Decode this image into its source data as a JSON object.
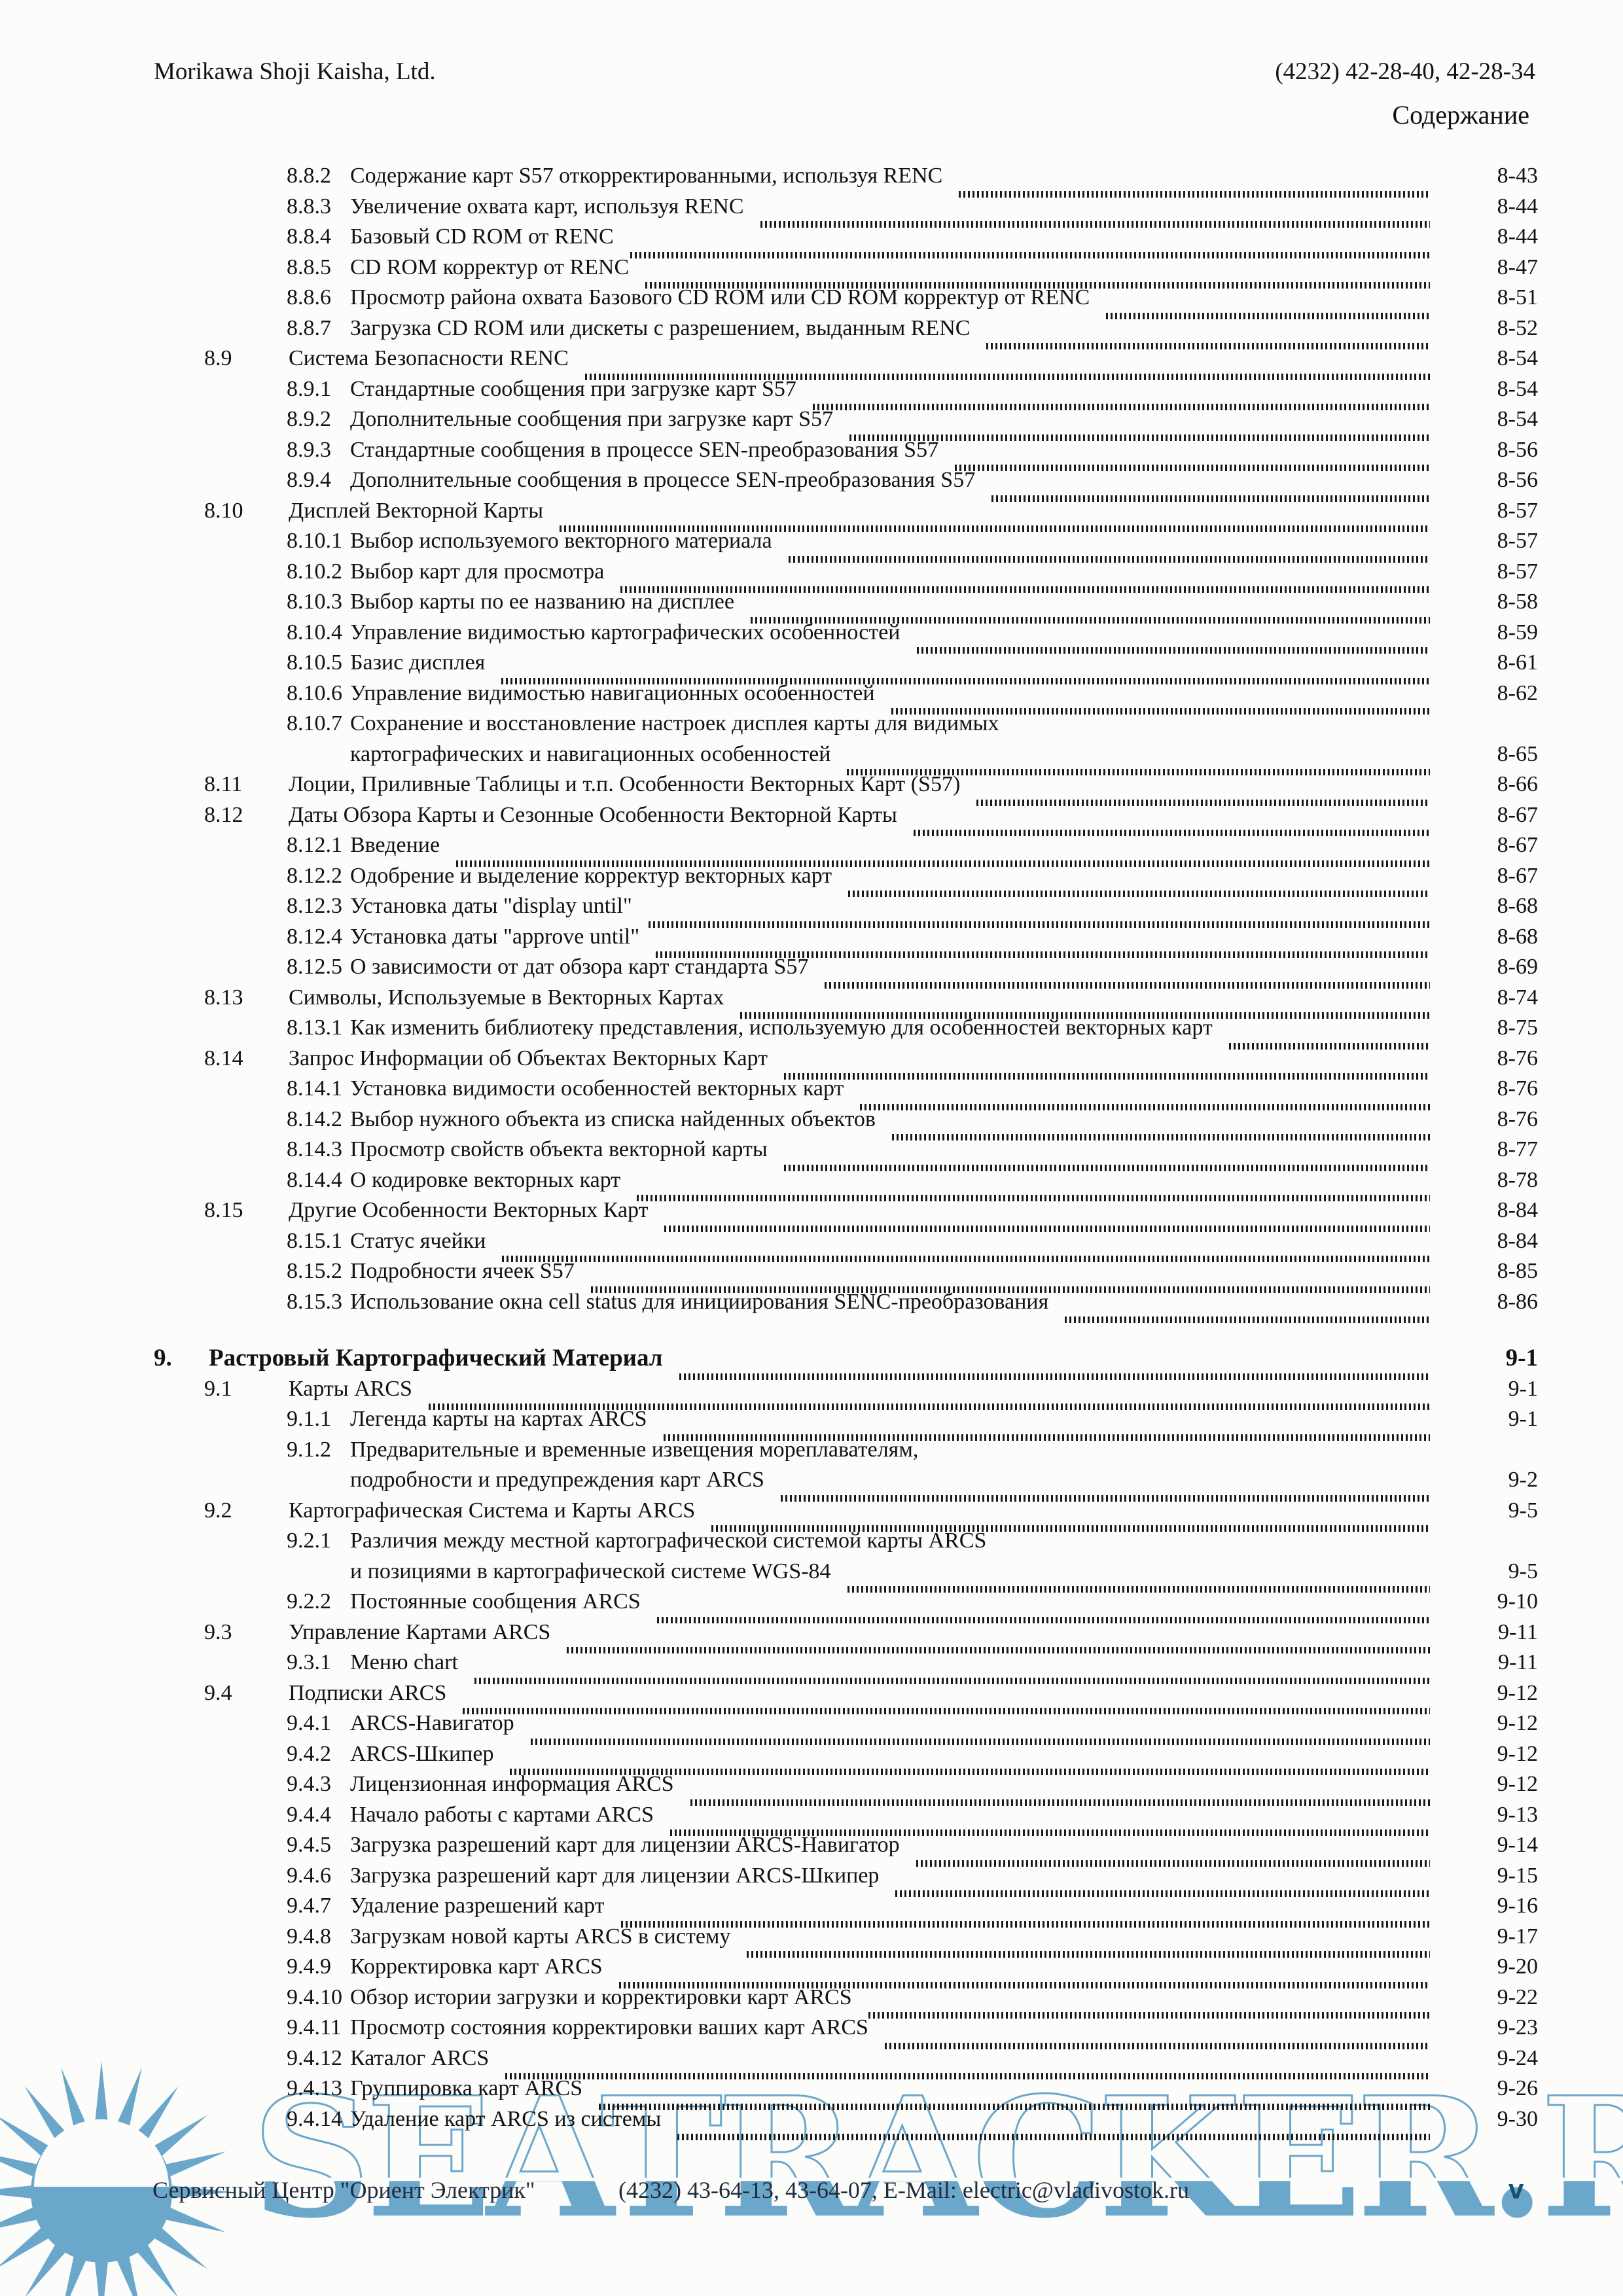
{
  "header": {
    "left": "Morikawa Shoji Kaisha, Ltd.",
    "right": "(4232) 42-28-40, 42-28-34",
    "contents_label": "Содержание"
  },
  "toc": {
    "entries": [
      {
        "num": "8.8.2",
        "title": "Содержание карт S57 откорректированными, используя RENC",
        "page": "8-43",
        "level": 2
      },
      {
        "num": "8.8.3",
        "title": "Увеличение охвата карт, используя RENC",
        "page": "8-44",
        "level": 2
      },
      {
        "num": "8.8.4",
        "title": "Базовый CD ROM от RENC",
        "page": "8-44",
        "level": 2
      },
      {
        "num": "8.8.5",
        "title": "CD ROM корректур от RENC",
        "page": "8-47",
        "level": 2
      },
      {
        "num": "8.8.6",
        "title": "Просмотр района охвата Базового CD ROM или CD ROM корректур от RENC",
        "page": "8-51",
        "level": 2
      },
      {
        "num": "8.8.7",
        "title": "Загрузка CD ROM или дискеты с разрешением, выданным RENC",
        "page": "8-52",
        "level": 2
      },
      {
        "num": "8.9",
        "title": "Система Безопасности RENC",
        "page": "8-54",
        "level": 1
      },
      {
        "num": "8.9.1",
        "title": "Стандартные сообщения при загрузке карт S57",
        "page": "8-54",
        "level": 2
      },
      {
        "num": "8.9.2",
        "title": "Дополнительные сообщения при загрузке карт S57",
        "page": "8-54",
        "level": 2
      },
      {
        "num": "8.9.3",
        "title": "Стандартные сообщения в процессе SEN-преобразования S57",
        "page": "8-56",
        "level": 2
      },
      {
        "num": "8.9.4",
        "title": "Дополнительные сообщения в процессе SEN-преобразования S57",
        "page": "8-56",
        "level": 2
      },
      {
        "num": "8.10",
        "title": "Дисплей Векторной Карты",
        "page": "8-57",
        "level": 1
      },
      {
        "num": "8.10.1",
        "title": "Выбор используемого векторного материала",
        "page": "8-57",
        "level": 2
      },
      {
        "num": "8.10.2",
        "title": "Выбор карт для просмотра",
        "page": "8-57",
        "level": 2
      },
      {
        "num": "8.10.3",
        "title": "Выбор карты по ее названию на дисплее",
        "page": "8-58",
        "level": 2
      },
      {
        "num": "8.10.4",
        "title": "Управление видимостью картографических особенностей",
        "page": "8-59",
        "level": 2
      },
      {
        "num": "8.10.5",
        "title": "Базис дисплея",
        "page": "8-61",
        "level": 2
      },
      {
        "num": "8.10.6",
        "title": "Управление видимостью навигационных особенностей",
        "page": "8-62",
        "level": 2
      },
      {
        "num": "8.10.7",
        "title": "Сохранение и восстановление настроек дисплея карты для видимых",
        "title2": "картографических и навигационных особенностей",
        "page": "8-65",
        "level": 2
      },
      {
        "num": "8.11",
        "title": "Лоции, Приливные Таблицы и т.п. Особенности Векторных Карт (S57)",
        "page": "8-66",
        "level": 1
      },
      {
        "num": "8.12",
        "title": "Даты Обзора Карты и Сезонные Особенности Векторной Карты",
        "page": "8-67",
        "level": 1
      },
      {
        "num": "8.12.1",
        "title": "Введение",
        "page": "8-67",
        "level": 2
      },
      {
        "num": "8.12.2",
        "title": "Одобрение и выделение корректур векторных карт",
        "page": "8-67",
        "level": 2
      },
      {
        "num": "8.12.3",
        "title": "Установка даты \"display until\"",
        "page": "8-68",
        "level": 2
      },
      {
        "num": "8.12.4",
        "title": "Установка даты \"approve until\"",
        "page": "8-68",
        "level": 2
      },
      {
        "num": "8.12.5",
        "title": "О зависимости от дат обзора карт стандарта S57",
        "page": "8-69",
        "level": 2
      },
      {
        "num": "8.13",
        "title": "Символы, Используемые в Векторных Картах",
        "page": "8-74",
        "level": 1
      },
      {
        "num": "8.13.1",
        "title": "Как изменить библиотеку представления, используемую для особенностей векторных карт",
        "page": "8-75",
        "level": 2
      },
      {
        "num": "8.14",
        "title": "Запрос Информации об Объектах Векторных Карт",
        "page": "8-76",
        "level": 1
      },
      {
        "num": "8.14.1",
        "title": "Установка видимости особенностей векторных карт",
        "page": "8-76",
        "level": 2
      },
      {
        "num": "8.14.2",
        "title": "Выбор нужного объекта из списка найденных объектов",
        "page": "8-76",
        "level": 2
      },
      {
        "num": "8.14.3",
        "title": "Просмотр свойств объекта векторной карты",
        "page": "8-77",
        "level": 2
      },
      {
        "num": "8.14.4",
        "title": "О кодировке векторных карт",
        "page": "8-78",
        "level": 2
      },
      {
        "num": "8.15",
        "title": "Другие Особенности Векторных Карт",
        "page": "8-84",
        "level": 1
      },
      {
        "num": "8.15.1",
        "title": "Статус ячейки",
        "page": "8-84",
        "level": 2
      },
      {
        "num": "8.15.2",
        "title": "Подробности ячеек S57",
        "page": "8-85",
        "level": 2
      },
      {
        "num": "8.15.3",
        "title": "Использование окна cell status для инициирования SENC-преобразования",
        "page": "8-86",
        "level": 2
      },
      {
        "num": "9.",
        "title": "Растровый Картографический Материал",
        "page": "9-1",
        "level": 0,
        "bold": true,
        "gap": true
      },
      {
        "num": "9.1",
        "title": "Карты ARCS",
        "page": "9-1",
        "level": 1
      },
      {
        "num": "9.1.1",
        "title": "Легенда карты на картах ARCS",
        "page": "9-1",
        "level": 2
      },
      {
        "num": "9.1.2",
        "title": "Предварительные и временные извещения мореплавателям,",
        "title2": "подробности и предупреждения карт ARCS",
        "page": "9-2",
        "level": 2
      },
      {
        "num": "9.2",
        "title": "Картографическая Система и Карты ARCS",
        "page": "9-5",
        "level": 1
      },
      {
        "num": "9.2.1",
        "title": "Различия между местной картографической системой карты ARCS",
        "title2": "и позициями в картографической системе WGS-84",
        "page": "9-5",
        "level": 2
      },
      {
        "num": "9.2.2",
        "title": "Постоянные сообщения ARCS",
        "page": "9-10",
        "level": 2
      },
      {
        "num": "9.3",
        "title": "Управление Картами ARCS",
        "page": "9-11",
        "level": 1
      },
      {
        "num": "9.3.1",
        "title": "Меню chart",
        "page": "9-11",
        "level": 2
      },
      {
        "num": "9.4",
        "title": "Подписки ARCS",
        "page": "9-12",
        "level": 1
      },
      {
        "num": "9.4.1",
        "title": "ARCS-Навигатор",
        "page": "9-12",
        "level": 2
      },
      {
        "num": "9.4.2",
        "title": "ARCS-Шкипер",
        "page": "9-12",
        "level": 2
      },
      {
        "num": "9.4.3",
        "title": "Лицензионная информация ARCS",
        "page": "9-12",
        "level": 2
      },
      {
        "num": "9.4.4",
        "title": "Начало работы с картами ARCS",
        "page": "9-13",
        "level": 2
      },
      {
        "num": "9.4.5",
        "title": "Загрузка разрешений карт для лицензии ARCS-Навигатор",
        "page": "9-14",
        "level": 2
      },
      {
        "num": "9.4.6",
        "title": "Загрузка разрешений карт для лицензии ARCS-Шкипер",
        "page": "9-15",
        "level": 2
      },
      {
        "num": "9.4.7",
        "title": "Удаление разрешений карт",
        "page": "9-16",
        "level": 2
      },
      {
        "num": "9.4.8",
        "title": "Загрузкам новой карты ARCS в систему",
        "page": "9-17",
        "level": 2
      },
      {
        "num": "9.4.9",
        "title": "Корректировка карт ARCS",
        "page": "9-20",
        "level": 2
      },
      {
        "num": "9.4.10",
        "title": "Обзор истории загрузки и корректировки карт ARCS",
        "page": "9-22",
        "level": 2
      },
      {
        "num": "9.4.11",
        "title": "Просмотр состояния корректировки ваших карт ARCS",
        "page": "9-23",
        "level": 2
      },
      {
        "num": "9.4.12",
        "title": "Каталог ARCS",
        "page": "9-24",
        "level": 2
      },
      {
        "num": "9.4.13",
        "title": "Группировка карт ARCS",
        "page": "9-26",
        "level": 2
      },
      {
        "num": "9.4.14",
        "title": "Удаление карт ARCS из системы",
        "page": "9-30",
        "level": 2
      }
    ]
  },
  "watermark": {
    "text": "SEATRACKER.RU",
    "color": "#6ba7cb"
  },
  "footer": {
    "service_center": "Сервисный Центр \"Ориент Электрик\"",
    "contacts": "(4232) 43-64-13, 43-64-07, E-Mail: electric@vladivostok.ru",
    "page_number": "v"
  }
}
